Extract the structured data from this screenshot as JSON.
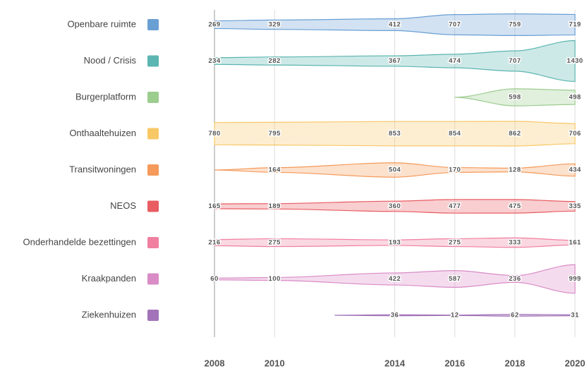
{
  "chart_data": {
    "type": "stream",
    "xlim": [
      2008,
      2020
    ],
    "xticks": [
      2008,
      2010,
      2014,
      2016,
      2018,
      2020
    ],
    "grid": true,
    "series": [
      {
        "name": "Openbare ruimte",
        "color": "#6a9fd4",
        "x": [
          2008,
          2010,
          2014,
          2016,
          2018,
          2020
        ],
        "values": [
          269,
          329,
          412,
          707,
          759,
          719
        ]
      },
      {
        "name": "Nood / Crisis",
        "color": "#5bb5b0",
        "x": [
          2008,
          2010,
          2014,
          2016,
          2018,
          2020
        ],
        "values": [
          234,
          282,
          367,
          474,
          707,
          1430
        ]
      },
      {
        "name": "Burgerplatform",
        "color": "#9ccc8e",
        "x": [
          2016,
          2018,
          2020
        ],
        "values": [
          0,
          598,
          498
        ]
      },
      {
        "name": "Onthaaltehuizen",
        "color": "#f8c867",
        "x": [
          2008,
          2010,
          2014,
          2016,
          2018,
          2020
        ],
        "values": [
          780,
          795,
          853,
          854,
          862,
          706
        ]
      },
      {
        "name": "Transitwoningen",
        "color": "#f59a5a",
        "x": [
          2008,
          2010,
          2014,
          2016,
          2018,
          2020
        ],
        "values": [
          0,
          164,
          504,
          170,
          128,
          434
        ]
      },
      {
        "name": "NEOS",
        "color": "#e85c62",
        "x": [
          2008,
          2010,
          2014,
          2016,
          2018,
          2020
        ],
        "values": [
          165,
          189,
          360,
          477,
          475,
          335
        ]
      },
      {
        "name": "Onderhandelde bezettingen",
        "color": "#f07fa0",
        "x": [
          2008,
          2010,
          2014,
          2016,
          2018,
          2020
        ],
        "values": [
          216,
          275,
          193,
          275,
          333,
          161
        ]
      },
      {
        "name": "Kraakpanden",
        "color": "#d98cc6",
        "x": [
          2008,
          2010,
          2014,
          2016,
          2018,
          2020
        ],
        "values": [
          60,
          100,
          422,
          587,
          236,
          999
        ]
      },
      {
        "name": "Ziekenhuizen",
        "color": "#a273b8",
        "x": [
          2012,
          2014,
          2016,
          2018,
          2020
        ],
        "values": [
          0,
          36,
          12,
          62,
          31
        ]
      }
    ]
  }
}
